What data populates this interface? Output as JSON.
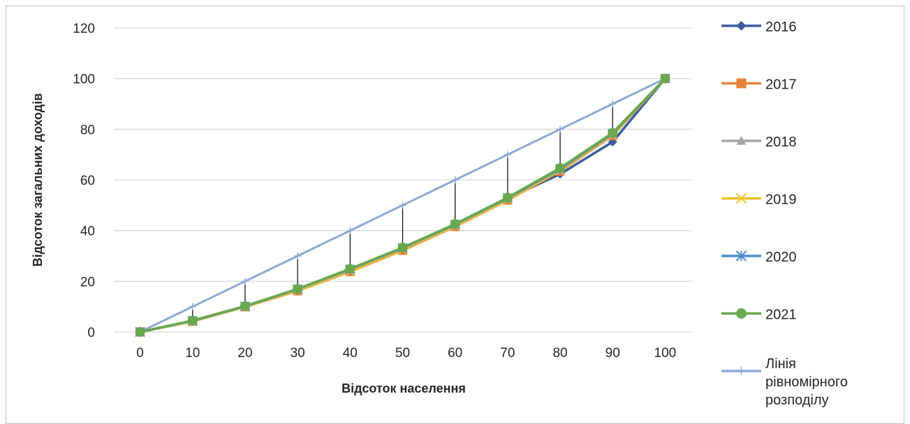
{
  "chart_data": {
    "type": "line",
    "x": [
      0,
      10,
      20,
      30,
      40,
      50,
      60,
      70,
      80,
      90,
      100
    ],
    "xlabel": "Відсоток населення",
    "ylabel": "Відсоток загальних доходів",
    "ylim": [
      0,
      120
    ],
    "yticks": [
      0,
      20,
      40,
      60,
      80,
      100,
      120
    ],
    "grid": "horizontal",
    "legend_position": "right",
    "series": [
      {
        "name": "2016",
        "color": "#3a5f9e",
        "marker": "diamond",
        "values": [
          0,
          4.3,
          10,
          16.8,
          24.6,
          33,
          42.3,
          52.7,
          62.3,
          75,
          100
        ]
      },
      {
        "name": "2017",
        "color": "#e8833a",
        "marker": "square",
        "values": [
          0,
          4.2,
          9.9,
          16.2,
          23.8,
          32.2,
          41.6,
          52,
          63.5,
          77.5,
          100
        ]
      },
      {
        "name": "2018",
        "color": "#a5a5a5",
        "marker": "triangle",
        "values": [
          0,
          4.3,
          10,
          16.6,
          24.3,
          32.8,
          42,
          52.5,
          64,
          78,
          100
        ]
      },
      {
        "name": "2019",
        "color": "#f2c12e",
        "marker": "x",
        "values": [
          0,
          4.2,
          9.9,
          16.4,
          24,
          32.5,
          41.8,
          52.2,
          63.8,
          77.8,
          100
        ]
      },
      {
        "name": "2020",
        "color": "#4f8fd0",
        "marker": "star",
        "values": [
          0,
          4.4,
          10.1,
          16.9,
          24.7,
          33.1,
          42.4,
          52.8,
          64.3,
          78.3,
          100
        ]
      },
      {
        "name": "2021",
        "color": "#6aa84f",
        "marker": "circle",
        "values": [
          0,
          4.5,
          10.2,
          17,
          24.9,
          33.3,
          42.6,
          53,
          64.7,
          78.6,
          100
        ]
      },
      {
        "name": "Лінія рівномірного розподілу",
        "color": "#8ea9d8",
        "marker": "plus",
        "values": [
          0,
          10,
          20,
          30,
          40,
          50,
          60,
          70,
          80,
          90,
          100
        ]
      }
    ]
  }
}
